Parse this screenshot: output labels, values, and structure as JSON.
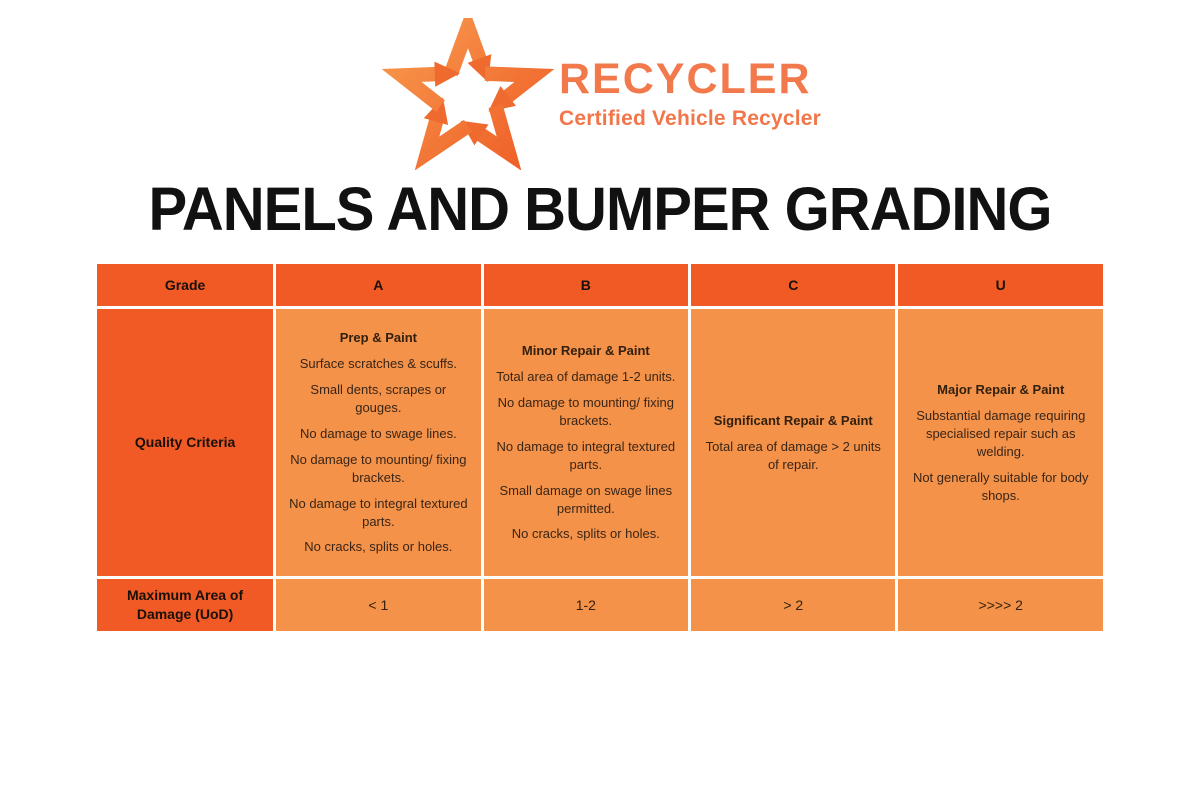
{
  "logo": {
    "brand": "RECYCLER",
    "tagline": "Certified Vehicle Recycler",
    "icon": "arrow-star-icon",
    "colors": {
      "brand_text": "#f2794b",
      "star_gradient_start": "#f89c4f",
      "star_gradient_end": "#ee5a24"
    }
  },
  "title": "PANELS AND BUMPER GRADING",
  "table": {
    "colors": {
      "header_bg": "#f15a25",
      "cell_bg": "#f39248",
      "border": "#fdeee2",
      "header_text": "#19100a",
      "cell_text": "#3a2517"
    },
    "header": [
      "Grade",
      "A",
      "B",
      "C",
      "U"
    ],
    "row_labels": [
      "Quality Criteria",
      "Maximum Area of Damage (UoD)"
    ],
    "columns": [
      {
        "grade": "A",
        "title": "Prep & Paint",
        "items": [
          "Surface scratches & scuffs.",
          "Small dents, scrapes or gouges.",
          "No damage to swage lines.",
          "No damage to mounting/ fixing brackets.",
          "No damage to integral textured parts.",
          "No cracks, splits or holes."
        ],
        "max_damage": "< 1"
      },
      {
        "grade": "B",
        "title": "Minor Repair & Paint",
        "items": [
          "Total area of damage 1-2 units.",
          "No damage to mounting/ fixing brackets.",
          "No damage to integral textured parts.",
          "Small damage on swage lines permitted.",
          "No cracks, splits or holes."
        ],
        "max_damage": "1-2"
      },
      {
        "grade": "C",
        "title": "Significant Repair & Paint",
        "items": [
          "Total area of damage > 2 units of repair."
        ],
        "max_damage": "> 2"
      },
      {
        "grade": "U",
        "title": "Major Repair & Paint",
        "items": [
          "Substantial damage requiring specialised repair such as welding.",
          "Not generally suitable for body shops."
        ],
        "max_damage": ">>>> 2"
      }
    ]
  }
}
